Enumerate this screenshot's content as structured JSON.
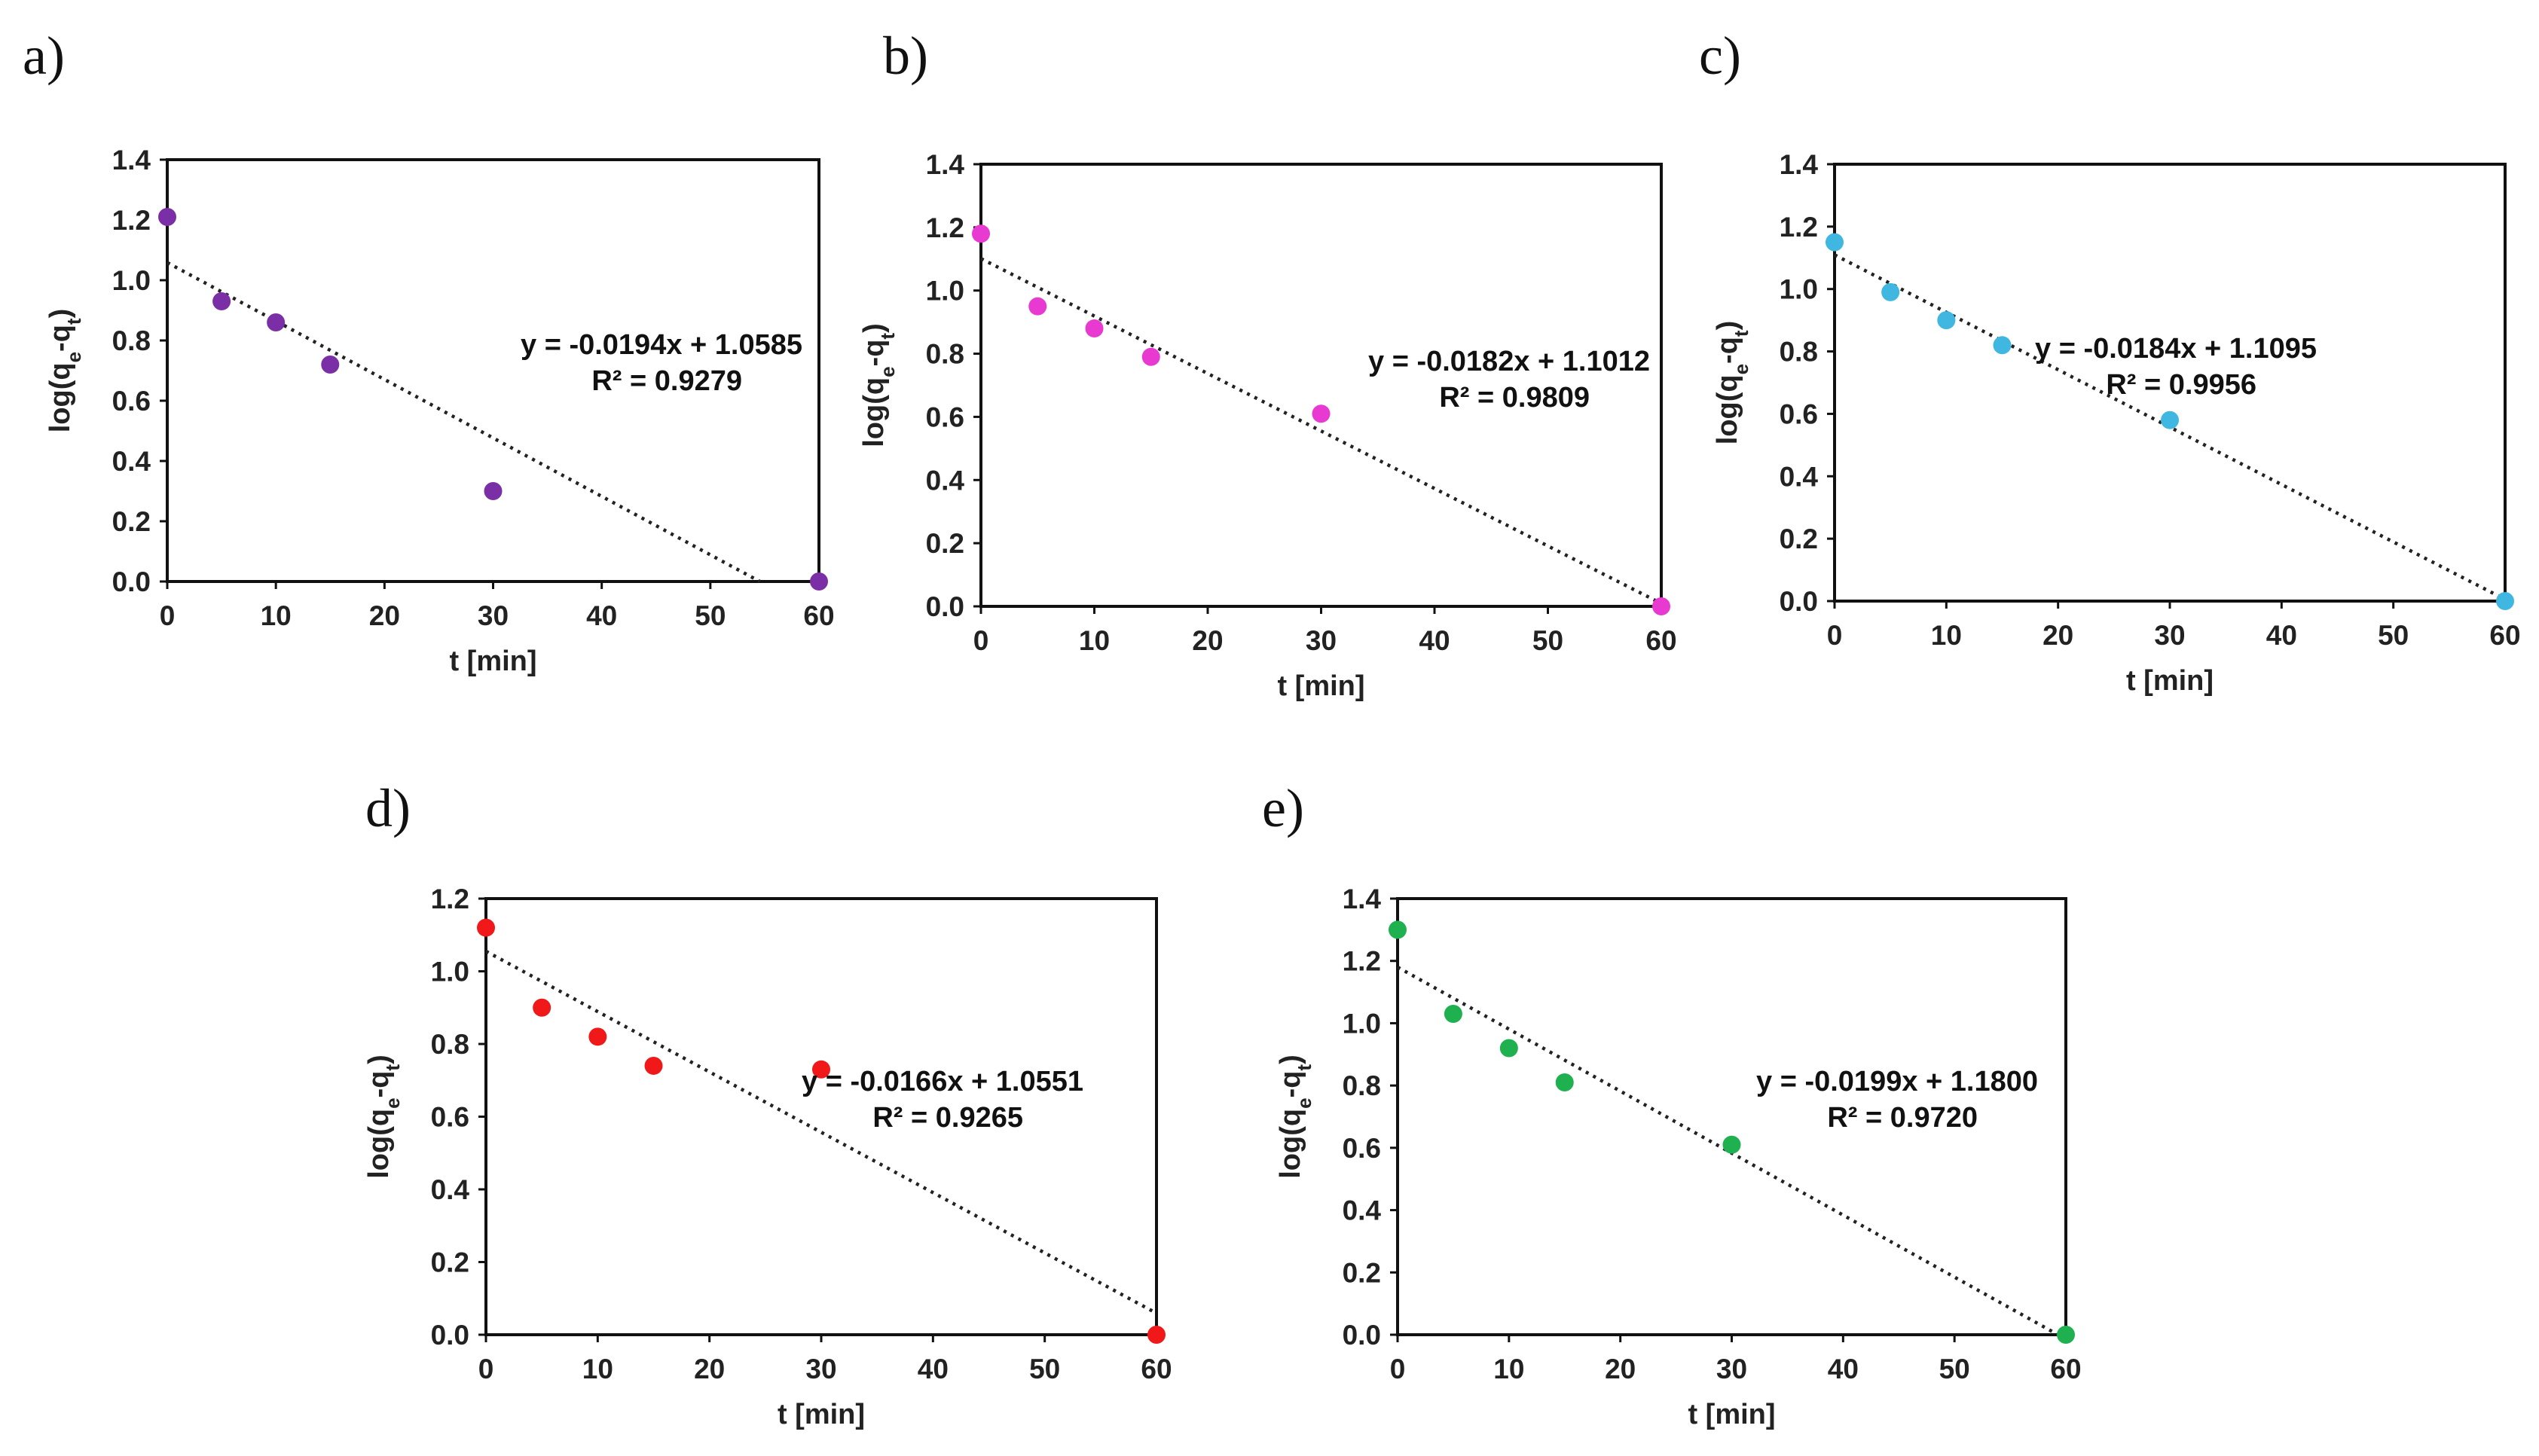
{
  "chart_data": [
    {
      "type": "scatter",
      "panel": "a)",
      "x": [
        0,
        5,
        10,
        15,
        30,
        60
      ],
      "y": [
        1.21,
        0.93,
        0.86,
        0.72,
        0.3,
        0.0
      ],
      "marker_color": "#7b2fa6",
      "xlim": [
        0,
        60
      ],
      "ylim": [
        0,
        1.4
      ],
      "xticks": [
        "0",
        "10",
        "20",
        "30",
        "40",
        "50",
        "60"
      ],
      "yticks": [
        "0.0",
        "0.2",
        "0.4",
        "0.6",
        "0.8",
        "1.0",
        "1.2",
        "1.4"
      ],
      "xlabel": "t [min]",
      "ylabel": "log(qe-qt)",
      "trendline": {
        "slope": -0.0194,
        "intercept": 1.0585
      },
      "equation": "y = -0.0194x + 1.0585",
      "r2": "R² = 0.9279"
    },
    {
      "type": "scatter",
      "panel": "b)",
      "x": [
        0,
        5,
        10,
        15,
        30,
        60
      ],
      "y": [
        1.18,
        0.95,
        0.88,
        0.79,
        0.61,
        0.0
      ],
      "marker_color": "#e83ad1",
      "xlim": [
        0,
        60
      ],
      "ylim": [
        0,
        1.4
      ],
      "xticks": [
        "0",
        "10",
        "20",
        "30",
        "40",
        "50",
        "60"
      ],
      "yticks": [
        "0.0",
        "0.2",
        "0.4",
        "0.6",
        "0.8",
        "1.0",
        "1.2",
        "1.4"
      ],
      "xlabel": "t [min]",
      "ylabel": "log(qe-qt)",
      "trendline": {
        "slope": -0.0182,
        "intercept": 1.1012
      },
      "equation": "y = -0.0182x + 1.1012",
      "r2": "R² = 0.9809"
    },
    {
      "type": "scatter",
      "panel": "c)",
      "x": [
        0,
        5,
        10,
        15,
        30,
        60
      ],
      "y": [
        1.15,
        0.99,
        0.9,
        0.82,
        0.58,
        0.0
      ],
      "marker_color": "#3fb7e0",
      "xlim": [
        0,
        60
      ],
      "ylim": [
        0,
        1.4
      ],
      "xticks": [
        "0",
        "10",
        "20",
        "30",
        "40",
        "50",
        "60"
      ],
      "yticks": [
        "0.0",
        "0.2",
        "0.4",
        "0.6",
        "0.8",
        "1.0",
        "1.2",
        "1.4"
      ],
      "xlabel": "t [min]",
      "ylabel": "log(qe-qt)",
      "trendline": {
        "slope": -0.0184,
        "intercept": 1.1095
      },
      "equation": "y = -0.0184x + 1.1095",
      "r2": "R² = 0.9956"
    },
    {
      "type": "scatter",
      "panel": "d)",
      "x": [
        0,
        5,
        10,
        15,
        30,
        60
      ],
      "y": [
        1.12,
        0.9,
        0.82,
        0.74,
        0.73,
        0.0
      ],
      "marker_color": "#f01818",
      "xlim": [
        0,
        60
      ],
      "ylim": [
        0,
        1.2
      ],
      "xticks": [
        "0",
        "10",
        "20",
        "30",
        "40",
        "50",
        "60"
      ],
      "yticks": [
        "0.0",
        "0.2",
        "0.4",
        "0.6",
        "0.8",
        "1.0",
        "1.2"
      ],
      "xlabel": "t [min]",
      "ylabel": "log(qe-qt)",
      "trendline": {
        "slope": -0.0166,
        "intercept": 1.0551
      },
      "equation": "y = -0.0166x + 1.0551",
      "r2": "R² = 0.9265"
    },
    {
      "type": "scatter",
      "panel": "e)",
      "x": [
        0,
        5,
        10,
        15,
        30,
        60
      ],
      "y": [
        1.3,
        1.03,
        0.92,
        0.81,
        0.61,
        0.0
      ],
      "marker_color": "#1fb050",
      "xlim": [
        0,
        60
      ],
      "ylim": [
        0,
        1.4
      ],
      "xticks": [
        "0",
        "10",
        "20",
        "30",
        "40",
        "50",
        "60"
      ],
      "yticks": [
        "0.0",
        "0.2",
        "0.4",
        "0.6",
        "0.8",
        "1.0",
        "1.2",
        "1.4"
      ],
      "xlabel": "t [min]",
      "ylabel": "log(qe-qt)",
      "trendline": {
        "slope": -0.0199,
        "intercept": 1.18
      },
      "equation": "y = -0.0199x + 1.1800",
      "r2": "R² = 0.9720"
    }
  ]
}
